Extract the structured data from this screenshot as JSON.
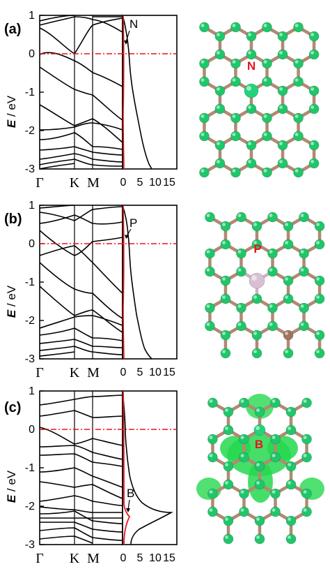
{
  "panels": [
    {
      "label": "(a)",
      "dopant": "N",
      "ylabel_italic": "E",
      "ylabel_rest": " / eV",
      "yticks": [
        "1",
        "0",
        "-1",
        "-2",
        "-3"
      ],
      "kpoints": [
        "Γ",
        "K",
        "M"
      ],
      "dos_ticks": [
        "0",
        "5",
        "10",
        "15"
      ],
      "dos_annotation": "N",
      "atom_color": "#1fc66a",
      "bond_color": "#b08a73",
      "dopant_color": "#23d27a"
    },
    {
      "label": "(b)",
      "dopant": "P",
      "ylabel_italic": "E",
      "ylabel_rest": " / eV",
      "yticks": [
        "1",
        "0",
        "-1",
        "-2",
        "-3"
      ],
      "kpoints": [
        "Γ",
        "K",
        "M"
      ],
      "dos_ticks": [
        "0",
        "5",
        "10",
        "15"
      ],
      "dos_annotation": "P",
      "atom_color": "#1fc66a",
      "bond_color": "#b08a73",
      "dopant_color": "#d8bfd2"
    },
    {
      "label": "(c)",
      "dopant": "B",
      "ylabel_italic": "E",
      "ylabel_rest": " / eV",
      "yticks": [
        "1",
        "0",
        "-1",
        "-2",
        "-3"
      ],
      "kpoints": [
        "Γ",
        "K",
        "M"
      ],
      "dos_ticks": [
        "0",
        "5",
        "10",
        "15"
      ],
      "dos_annotation": "B",
      "atom_color": "#1fc66a",
      "bond_color": "#b08a73",
      "dopant_color": "#23d27a"
    }
  ],
  "colors": {
    "fermi_line": "#e8141c",
    "pdos_line": "#e8141c",
    "density_cloud": "#25d84f"
  }
}
